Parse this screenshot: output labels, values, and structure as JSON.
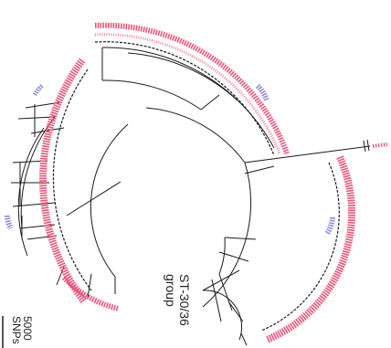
{
  "figure": {
    "group_label_line1": "ST-30/36",
    "group_label_line2": "group",
    "scale_value": "5000",
    "scale_unit": "SNPs"
  },
  "colors": {
    "branch": "#1a1a1a",
    "leaf_primary": "#e8557a",
    "leaf_secondary": "#8a8fd6"
  }
}
